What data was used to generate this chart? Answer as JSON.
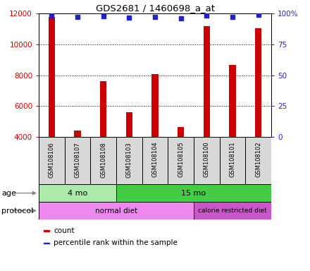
{
  "title": "GDS2681 / 1460698_a_at",
  "samples": [
    "GSM108106",
    "GSM108107",
    "GSM108108",
    "GSM108103",
    "GSM108104",
    "GSM108105",
    "GSM108100",
    "GSM108101",
    "GSM108102"
  ],
  "counts": [
    11800,
    4400,
    7600,
    5600,
    8050,
    4650,
    11200,
    8650,
    11050
  ],
  "percentile_ranks": [
    98.5,
    97.0,
    98.0,
    96.5,
    97.5,
    96.0,
    98.5,
    97.0,
    99.0
  ],
  "ylim_left": [
    4000,
    12000
  ],
  "ylim_right": [
    0,
    100
  ],
  "yticks_left": [
    4000,
    6000,
    8000,
    10000,
    12000
  ],
  "yticks_right": [
    0,
    25,
    50,
    75,
    100
  ],
  "bar_color": "#cc0000",
  "dot_color": "#2222cc",
  "grid_color": "#000000",
  "age_groups": [
    {
      "label": "4 mo",
      "start": 0,
      "end": 3,
      "color": "#aaeaaa"
    },
    {
      "label": "15 mo",
      "start": 3,
      "end": 9,
      "color": "#44cc44"
    }
  ],
  "protocol_groups": [
    {
      "label": "normal diet",
      "start": 0,
      "end": 6,
      "color": "#ee88ee"
    },
    {
      "label": "calorie restricted diet",
      "start": 6,
      "end": 9,
      "color": "#cc55cc"
    }
  ],
  "left_label_color": "#cc0000",
  "right_label_color": "#2222cc",
  "legend_items": [
    {
      "color": "#cc0000",
      "label": "count"
    },
    {
      "color": "#2222cc",
      "label": "percentile rank within the sample"
    }
  ]
}
